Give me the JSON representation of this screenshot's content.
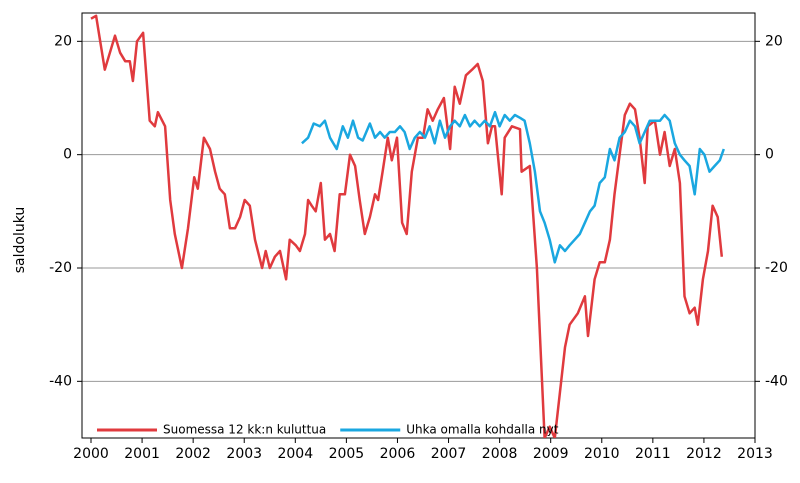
{
  "chart_data": {
    "type": "line",
    "y_label": "saldoluku",
    "xlim": [
      2000,
      2013
    ],
    "xticks": [
      2000,
      2001,
      2002,
      2003,
      2004,
      2005,
      2006,
      2007,
      2008,
      2009,
      2010,
      2011,
      2012,
      2013
    ],
    "ylim": [
      -50,
      25
    ],
    "yticks": [
      -40,
      -20,
      0,
      20
    ],
    "grid": true,
    "legend": "lower left",
    "series": [
      {
        "name": "Suomessa 12 kk:n kuluttua",
        "color": "#e03a3e",
        "x": [
          2000.0,
          2000.1,
          2000.18,
          2000.27,
          2000.37,
          2000.47,
          2000.57,
          2000.67,
          2000.76,
          2000.82,
          2000.9,
          2001.02,
          2001.15,
          2001.25,
          2001.31,
          2001.45,
          2001.55,
          2001.64,
          2001.78,
          2001.9,
          2002.02,
          2002.09,
          2002.21,
          2002.33,
          2002.43,
          2002.52,
          2002.62,
          2002.72,
          2002.82,
          2002.92,
          2003.01,
          2003.11,
          2003.21,
          2003.35,
          2003.42,
          2003.5,
          2003.6,
          2003.7,
          2003.82,
          2003.89,
          2004.01,
          2004.09,
          2004.19,
          2004.25,
          2004.32,
          2004.4,
          2004.5,
          2004.58,
          2004.68,
          2004.77,
          2004.87,
          2004.97,
          2005.07,
          2005.17,
          2005.26,
          2005.36,
          2005.46,
          2005.56,
          2005.62,
          2005.71,
          2005.81,
          2005.89,
          2005.99,
          2006.09,
          2006.18,
          2006.28,
          2006.4,
          2006.5,
          2006.59,
          2006.69,
          2006.79,
          2006.91,
          2007.03,
          2007.12,
          2007.22,
          2007.34,
          2007.46,
          2007.57,
          2007.67,
          2007.77,
          2007.85,
          2007.91,
          2008.04,
          2008.1,
          2008.24,
          2008.4,
          2008.43,
          2008.59,
          2008.73,
          2008.88,
          2008.98,
          2009.08,
          2009.18,
          2009.28,
          2009.37,
          2009.53,
          2009.67,
          2009.73,
          2009.86,
          2009.96,
          2010.06,
          2010.16,
          2010.25,
          2010.35,
          2010.45,
          2010.55,
          2010.65,
          2010.74,
          2010.84,
          2010.9,
          2011.04,
          2011.14,
          2011.23,
          2011.33,
          2011.43,
          2011.53,
          2011.62,
          2011.72,
          2011.82,
          2011.88,
          2011.98,
          2012.08,
          2012.17,
          2012.27,
          2012.35
        ],
        "values": [
          24,
          24.5,
          20,
          15,
          18,
          21,
          18,
          16.5,
          16.5,
          13,
          20,
          21.5,
          6,
          5,
          7.5,
          5,
          -8,
          -14,
          -20,
          -13,
          -4,
          -6,
          3,
          1,
          -3,
          -6,
          -7,
          -13,
          -13,
          -11,
          -8,
          -9,
          -15,
          -20,
          -17,
          -20,
          -18,
          -17,
          -22,
          -15,
          -16,
          -17,
          -14,
          -8,
          -9,
          -10,
          -5,
          -15,
          -14,
          -17,
          -7,
          -7,
          0,
          -2,
          -8,
          -14,
          -11,
          -7,
          -8,
          -3,
          3,
          -1,
          3,
          -12,
          -14,
          -3,
          3,
          3,
          8,
          6,
          8,
          10,
          1,
          12,
          9,
          14,
          15,
          16,
          13,
          2,
          5,
          5,
          -7,
          3,
          5,
          4.5,
          -3,
          -2,
          -20,
          -50,
          -48,
          -50,
          -42,
          -34,
          -30,
          -28,
          -25,
          -32,
          -22,
          -19,
          -19,
          -15,
          -7,
          0,
          7,
          9,
          8,
          3,
          -5,
          5,
          6,
          0,
          4,
          -2,
          1,
          -5,
          -25,
          -28,
          -27,
          -30,
          -22,
          -17,
          -9,
          -11,
          -18
        ]
      },
      {
        "name": "Uhka omalla kohdalla nyt",
        "color": "#1aa7e0",
        "x": [
          2004.13,
          2004.25,
          2004.36,
          2004.48,
          2004.58,
          2004.68,
          2004.81,
          2004.93,
          2005.03,
          2005.13,
          2005.23,
          2005.32,
          2005.46,
          2005.56,
          2005.66,
          2005.75,
          2005.85,
          2005.95,
          2006.05,
          2006.14,
          2006.24,
          2006.34,
          2006.44,
          2006.54,
          2006.63,
          2006.73,
          2006.83,
          2006.93,
          2007.03,
          2007.12,
          2007.22,
          2007.32,
          2007.42,
          2007.51,
          2007.61,
          2007.71,
          2007.81,
          2007.91,
          2008.0,
          2008.1,
          2008.2,
          2008.3,
          2008.4,
          2008.49,
          2008.59,
          2008.69,
          2008.79,
          2008.88,
          2008.98,
          2009.08,
          2009.18,
          2009.28,
          2009.37,
          2009.47,
          2009.57,
          2009.67,
          2009.77,
          2009.86,
          2009.96,
          2010.06,
          2010.16,
          2010.25,
          2010.35,
          2010.45,
          2010.55,
          2010.65,
          2010.74,
          2010.84,
          2010.94,
          2011.04,
          2011.14,
          2011.23,
          2011.33,
          2011.43,
          2011.53,
          2011.62,
          2011.72,
          2011.82,
          2011.92,
          2012.01,
          2012.11,
          2012.21,
          2012.31,
          2012.39
        ],
        "values": [
          2,
          3,
          5.5,
          5,
          6,
          3,
          1,
          5,
          3,
          6,
          3,
          2.5,
          5.5,
          3,
          4,
          3,
          4,
          4,
          5,
          4,
          1,
          3,
          4,
          3,
          5,
          2,
          6,
          3,
          5,
          6,
          5,
          7,
          5,
          6,
          5,
          6,
          5,
          7.5,
          5,
          7,
          6,
          7,
          6.5,
          6,
          2,
          -3,
          -10,
          -12,
          -15,
          -19,
          -16,
          -17,
          -16,
          -15,
          -14,
          -12,
          -10,
          -9,
          -5,
          -4,
          1,
          -1,
          3,
          4,
          6,
          5,
          2,
          4,
          6,
          6,
          6,
          7,
          6,
          2,
          0,
          -1,
          -2,
          -7,
          1,
          0,
          -3,
          -2,
          -1,
          1
        ]
      }
    ]
  }
}
